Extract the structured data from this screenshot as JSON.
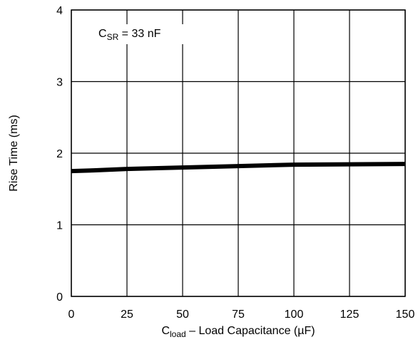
{
  "chart_data": {
    "type": "line",
    "title": "",
    "xlabel": {
      "main": "C",
      "sub": "load",
      "rest": " – Load Capacitance (µF)"
    },
    "ylabel": "Rise Time (ms)",
    "xlim": [
      0,
      150
    ],
    "ylim": [
      0,
      4
    ],
    "xticks": [
      0,
      25,
      50,
      75,
      100,
      125,
      150
    ],
    "yticks": [
      0,
      1,
      2,
      3,
      4
    ],
    "grid": true,
    "annotation": {
      "main": "C",
      "sub": "SR",
      "rest": " = 33 nF"
    },
    "series": [
      {
        "color": "#000000",
        "x": [
          0,
          10,
          25,
          50,
          75,
          100,
          125,
          150
        ],
        "y": [
          1.75,
          1.76,
          1.78,
          1.8,
          1.82,
          1.84,
          1.845,
          1.85
        ]
      }
    ]
  }
}
